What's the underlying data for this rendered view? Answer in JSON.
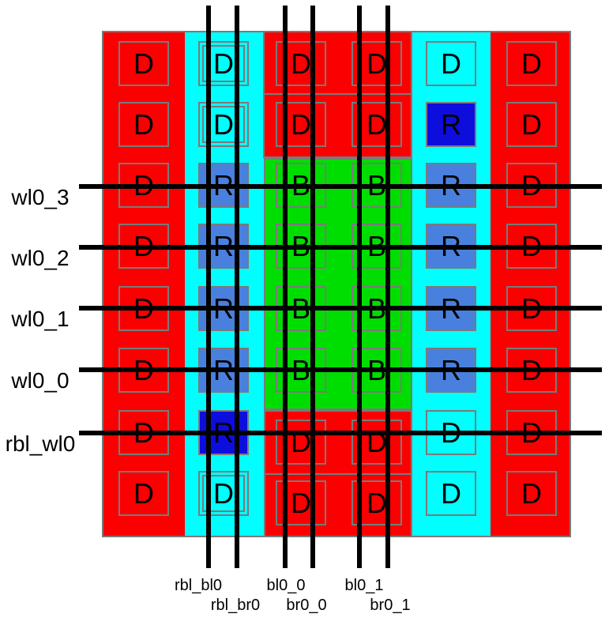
{
  "colors": {
    "red": "#fa0000",
    "cyan": "#00ffff",
    "green": "#00dd00",
    "replica_blue": "#4a80dd",
    "replica_dark_blue": "#0d0ddd",
    "outline_gray": "#7a7a7a",
    "wire_black": "#000000"
  },
  "cell_grid": {
    "columns": 6,
    "rows": [
      [
        "D",
        "D",
        "D",
        "D",
        "D",
        "D"
      ],
      [
        "D",
        "D",
        "D",
        "D",
        "R",
        "D"
      ],
      [
        "D",
        "R",
        "B",
        "B",
        "R",
        "D"
      ],
      [
        "D",
        "R",
        "B",
        "B",
        "R",
        "D"
      ],
      [
        "D",
        "R",
        "B",
        "B",
        "R",
        "D"
      ],
      [
        "D",
        "R",
        "B",
        "B",
        "R",
        "D"
      ],
      [
        "D",
        "R",
        "D",
        "D",
        "D",
        "D"
      ],
      [
        "D",
        "D",
        "D",
        "D",
        "D",
        "D"
      ]
    ],
    "dark_replica_cells": [
      [
        1,
        4
      ],
      [
        6,
        1
      ]
    ]
  },
  "wordline_labels": [
    "wl0_3",
    "wl0_2",
    "wl0_1",
    "wl0_0",
    "rbl_wl0"
  ],
  "bitline_labels": [
    "rbl_bl0",
    "rbl_br0",
    "bl0_0",
    "br0_0",
    "bl0_1",
    "br0_1"
  ]
}
